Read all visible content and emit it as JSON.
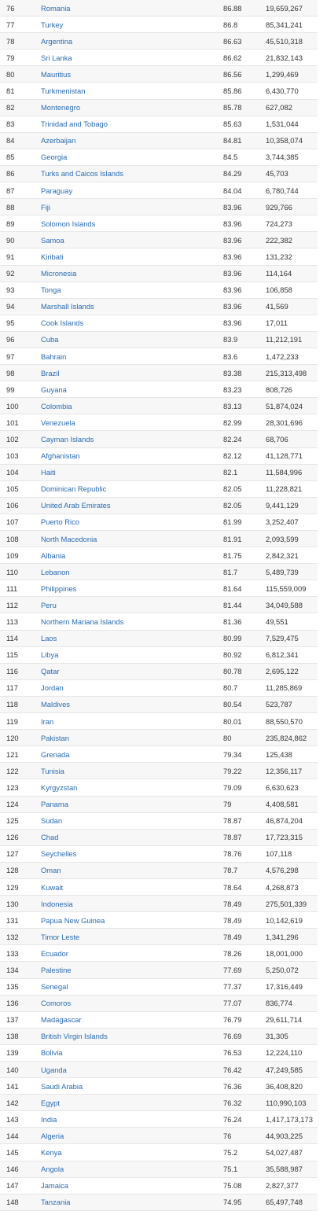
{
  "rows": [
    {
      "rank": "76",
      "country": "Romania",
      "score": "86.88",
      "population": "19,659,267"
    },
    {
      "rank": "77",
      "country": "Turkey",
      "score": "86.8",
      "population": "85,341,241"
    },
    {
      "rank": "78",
      "country": "Argentina",
      "score": "86.63",
      "population": "45,510,318"
    },
    {
      "rank": "79",
      "country": "Sri Lanka",
      "score": "86.62",
      "population": "21,832,143"
    },
    {
      "rank": "80",
      "country": "Mauritius",
      "score": "86.56",
      "population": "1,299,469"
    },
    {
      "rank": "81",
      "country": "Turkmenistan",
      "score": "85.86",
      "population": "6,430,770"
    },
    {
      "rank": "82",
      "country": "Montenegro",
      "score": "85.78",
      "population": "627,082"
    },
    {
      "rank": "83",
      "country": "Trinidad and Tobago",
      "score": "85.63",
      "population": "1,531,044"
    },
    {
      "rank": "84",
      "country": "Azerbaijan",
      "score": "84.81",
      "population": "10,358,074"
    },
    {
      "rank": "85",
      "country": "Georgia",
      "score": "84.5",
      "population": "3,744,385"
    },
    {
      "rank": "86",
      "country": "Turks and Caicos Islands",
      "score": "84.29",
      "population": "45,703"
    },
    {
      "rank": "87",
      "country": "Paraguay",
      "score": "84.04",
      "population": "6,780,744"
    },
    {
      "rank": "88",
      "country": "Fiji",
      "score": "83.96",
      "population": "929,766"
    },
    {
      "rank": "89",
      "country": "Solomon Islands",
      "score": "83.96",
      "population": "724,273"
    },
    {
      "rank": "90",
      "country": "Samoa",
      "score": "83.96",
      "population": "222,382"
    },
    {
      "rank": "91",
      "country": "Kiribati",
      "score": "83.96",
      "population": "131,232"
    },
    {
      "rank": "92",
      "country": "Micronesia",
      "score": "83.96",
      "population": "114,164"
    },
    {
      "rank": "93",
      "country": "Tonga",
      "score": "83.96",
      "population": "106,858"
    },
    {
      "rank": "94",
      "country": "Marshall Islands",
      "score": "83.96",
      "population": "41,569"
    },
    {
      "rank": "95",
      "country": "Cook Islands",
      "score": "83.96",
      "population": "17,011"
    },
    {
      "rank": "96",
      "country": "Cuba",
      "score": "83.9",
      "population": "11,212,191"
    },
    {
      "rank": "97",
      "country": "Bahrain",
      "score": "83.6",
      "population": "1,472,233"
    },
    {
      "rank": "98",
      "country": "Brazil",
      "score": "83.38",
      "population": "215,313,498"
    },
    {
      "rank": "99",
      "country": "Guyana",
      "score": "83.23",
      "population": "808,726"
    },
    {
      "rank": "100",
      "country": "Colombia",
      "score": "83.13",
      "population": "51,874,024"
    },
    {
      "rank": "101",
      "country": "Venezuela",
      "score": "82.99",
      "population": "28,301,696"
    },
    {
      "rank": "102",
      "country": "Cayman Islands",
      "score": "82.24",
      "population": "68,706"
    },
    {
      "rank": "103",
      "country": "Afghanistan",
      "score": "82.12",
      "population": "41,128,771"
    },
    {
      "rank": "104",
      "country": "Haiti",
      "score": "82.1",
      "population": "11,584,996"
    },
    {
      "rank": "105",
      "country": "Dominican Republic",
      "score": "82.05",
      "population": "11,228,821"
    },
    {
      "rank": "106",
      "country": "United Arab Emirates",
      "score": "82.05",
      "population": "9,441,129"
    },
    {
      "rank": "107",
      "country": "Puerto Rico",
      "score": "81.99",
      "population": "3,252,407"
    },
    {
      "rank": "108",
      "country": "North Macedonia",
      "score": "81.91",
      "population": "2,093,599"
    },
    {
      "rank": "109",
      "country": "Albania",
      "score": "81.75",
      "population": "2,842,321"
    },
    {
      "rank": "110",
      "country": "Lebanon",
      "score": "81.7",
      "population": "5,489,739"
    },
    {
      "rank": "111",
      "country": "Philippines",
      "score": "81.64",
      "population": "115,559,009"
    },
    {
      "rank": "112",
      "country": "Peru",
      "score": "81.44",
      "population": "34,049,588"
    },
    {
      "rank": "113",
      "country": "Northern Mariana Islands",
      "score": "81.36",
      "population": "49,551"
    },
    {
      "rank": "114",
      "country": "Laos",
      "score": "80.99",
      "population": "7,529,475"
    },
    {
      "rank": "115",
      "country": "Libya",
      "score": "80.92",
      "population": "6,812,341"
    },
    {
      "rank": "116",
      "country": "Qatar",
      "score": "80.78",
      "population": "2,695,122"
    },
    {
      "rank": "117",
      "country": "Jordan",
      "score": "80.7",
      "population": "11,285,869"
    },
    {
      "rank": "118",
      "country": "Maldives",
      "score": "80.54",
      "population": "523,787"
    },
    {
      "rank": "119",
      "country": "Iran",
      "score": "80.01",
      "population": "88,550,570"
    },
    {
      "rank": "120",
      "country": "Pakistan",
      "score": "80",
      "population": "235,824,862"
    },
    {
      "rank": "121",
      "country": "Grenada",
      "score": "79.34",
      "population": "125,438"
    },
    {
      "rank": "122",
      "country": "Tunisia",
      "score": "79.22",
      "population": "12,356,117"
    },
    {
      "rank": "123",
      "country": "Kyrgyzstan",
      "score": "79.09",
      "population": "6,630,623"
    },
    {
      "rank": "124",
      "country": "Panama",
      "score": "79",
      "population": "4,408,581"
    },
    {
      "rank": "125",
      "country": "Sudan",
      "score": "78.87",
      "population": "46,874,204"
    },
    {
      "rank": "126",
      "country": "Chad",
      "score": "78.87",
      "population": "17,723,315"
    },
    {
      "rank": "127",
      "country": "Seychelles",
      "score": "78.76",
      "population": "107,118"
    },
    {
      "rank": "128",
      "country": "Oman",
      "score": "78.7",
      "population": "4,576,298"
    },
    {
      "rank": "129",
      "country": "Kuwait",
      "score": "78.64",
      "population": "4,268,873"
    },
    {
      "rank": "130",
      "country": "Indonesia",
      "score": "78.49",
      "population": "275,501,339"
    },
    {
      "rank": "131",
      "country": "Papua New Guinea",
      "score": "78.49",
      "population": "10,142,619"
    },
    {
      "rank": "132",
      "country": "Timor Leste",
      "score": "78.49",
      "population": "1,341,296"
    },
    {
      "rank": "133",
      "country": "Ecuador",
      "score": "78.26",
      "population": "18,001,000"
    },
    {
      "rank": "134",
      "country": "Palestine",
      "score": "77.69",
      "population": "5,250,072"
    },
    {
      "rank": "135",
      "country": "Senegal",
      "score": "77.37",
      "population": "17,316,449"
    },
    {
      "rank": "136",
      "country": "Comoros",
      "score": "77.07",
      "population": "836,774"
    },
    {
      "rank": "137",
      "country": "Madagascar",
      "score": "76.79",
      "population": "29,611,714"
    },
    {
      "rank": "138",
      "country": "British Virgin Islands",
      "score": "76.69",
      "population": "31,305"
    },
    {
      "rank": "139",
      "country": "Bolivia",
      "score": "76.53",
      "population": "12,224,110"
    },
    {
      "rank": "140",
      "country": "Uganda",
      "score": "76.42",
      "population": "47,249,585"
    },
    {
      "rank": "141",
      "country": "Saudi Arabia",
      "score": "76.36",
      "population": "36,408,820"
    },
    {
      "rank": "142",
      "country": "Egypt",
      "score": "76.32",
      "population": "110,990,103"
    },
    {
      "rank": "143",
      "country": "India",
      "score": "76.24",
      "population": "1,417,173,173"
    },
    {
      "rank": "144",
      "country": "Algeria",
      "score": "76",
      "population": "44,903,225"
    },
    {
      "rank": "145",
      "country": "Kenya",
      "score": "75.2",
      "population": "54,027,487"
    },
    {
      "rank": "146",
      "country": "Angola",
      "score": "75.1",
      "population": "35,588,987"
    },
    {
      "rank": "147",
      "country": "Jamaica",
      "score": "75.08",
      "population": "2,827,377"
    },
    {
      "rank": "148",
      "country": "Tanzania",
      "score": "74.95",
      "population": "65,497,748"
    }
  ]
}
